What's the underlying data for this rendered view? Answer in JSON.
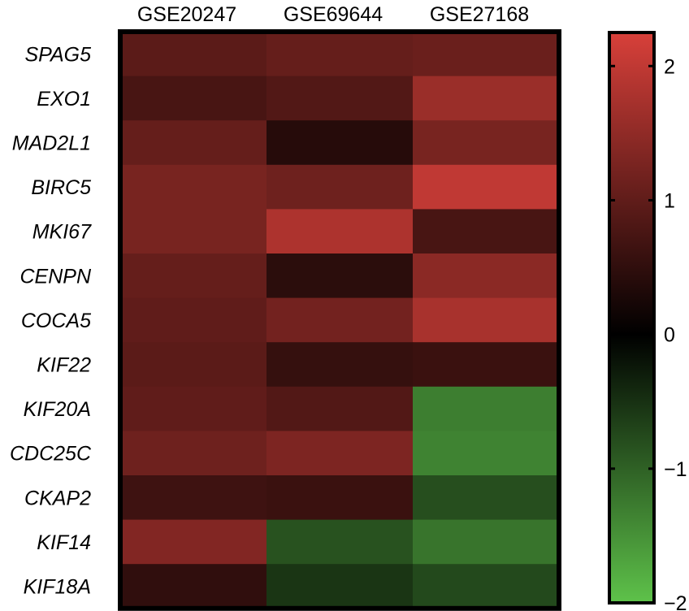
{
  "chart_data": {
    "type": "heatmap",
    "columns": [
      "GSE20247",
      "GSE69644",
      "GSE27168"
    ],
    "rows": [
      "SPAG5",
      "EXO1",
      "MAD2L1",
      "BIRC5",
      "MKI67",
      "CENPN",
      "COCA5",
      "KIF22",
      "KIF20A",
      "CDC25C",
      "CKAP2",
      "KIF14",
      "KIF18A"
    ],
    "values": [
      [
        0.95,
        1.05,
        1.1
      ],
      [
        0.75,
        0.85,
        1.6
      ],
      [
        1.05,
        0.4,
        1.25
      ],
      [
        1.25,
        1.15,
        2.0
      ],
      [
        1.25,
        1.8,
        0.75
      ],
      [
        1.05,
        0.45,
        1.45
      ],
      [
        1.0,
        1.2,
        1.75
      ],
      [
        0.95,
        0.55,
        0.6
      ],
      [
        1.0,
        0.85,
        -1.3
      ],
      [
        1.15,
        1.3,
        -1.35
      ],
      [
        0.65,
        0.6,
        -0.8
      ],
      [
        1.35,
        -0.85,
        -1.2
      ],
      [
        0.5,
        -0.55,
        -0.75
      ]
    ],
    "colorbar": {
      "range": [
        -2,
        2.25
      ],
      "ticks": [
        2,
        1,
        0,
        -1,
        -2
      ],
      "tick_labels": [
        "2",
        "1",
        "0",
        "−1",
        "−2"
      ],
      "colors": {
        "low": "#5ec24a",
        "mid": "#000000",
        "high": "#d8403a"
      }
    },
    "grid": false,
    "legend": "colorbar-right"
  }
}
